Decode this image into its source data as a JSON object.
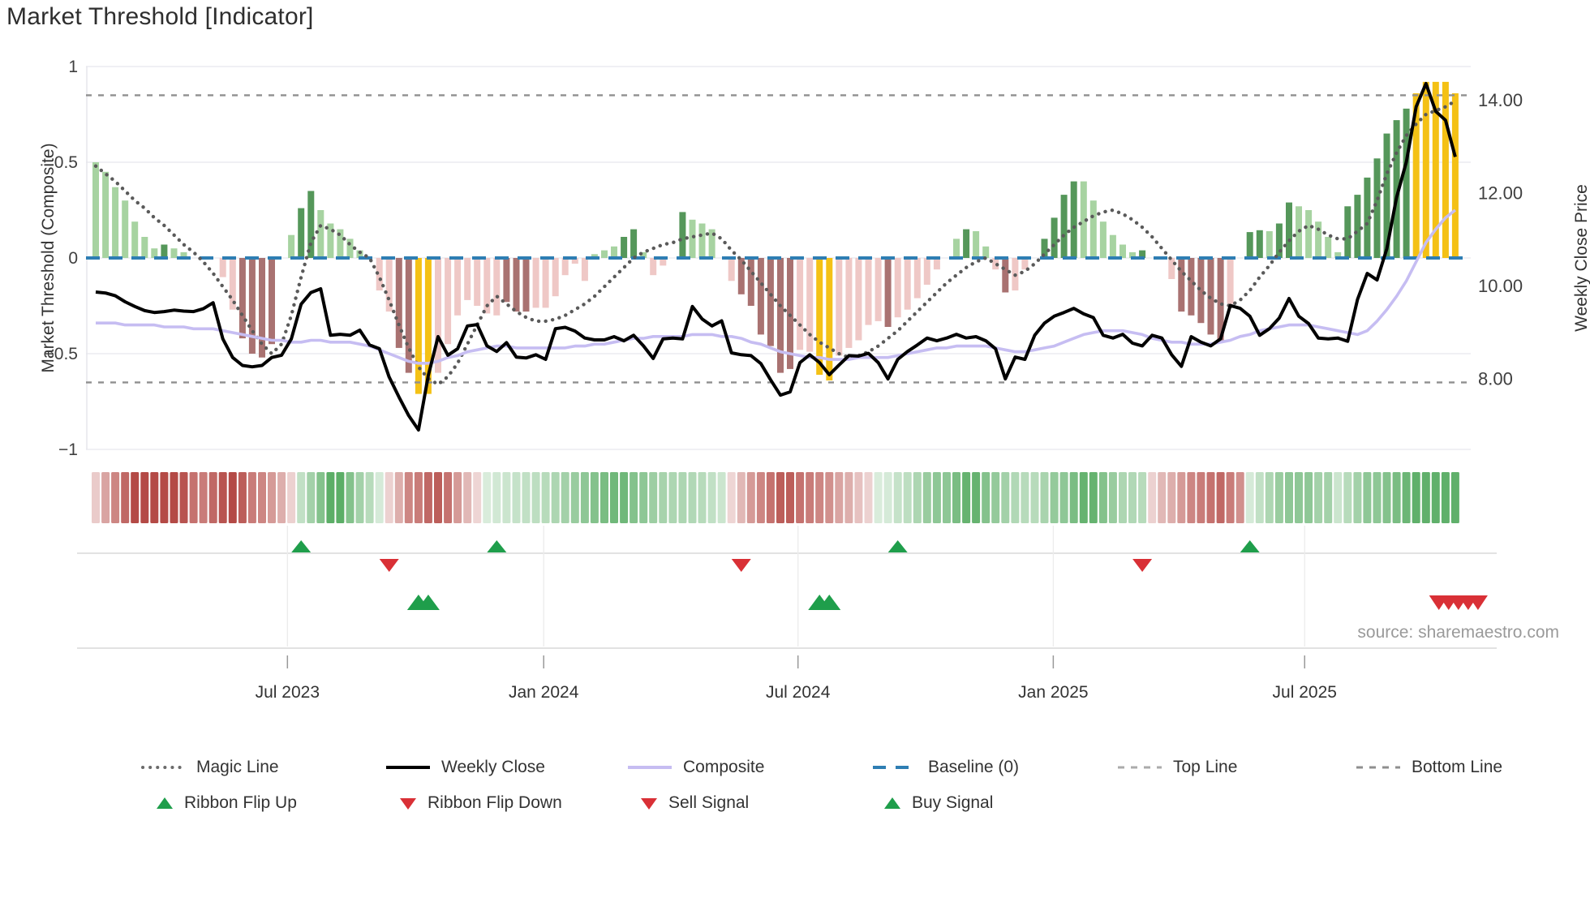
{
  "title": "Market Threshold [Indicator]",
  "source_note": "source: sharemaestro.com",
  "axes": {
    "left_title": "Market Threshold (Composite)",
    "right_title": "Weekly Close Price",
    "left_ticks": [
      {
        "label": "1",
        "value": 1
      },
      {
        "label": "0.5",
        "value": 0.5
      },
      {
        "label": "0",
        "value": 0
      },
      {
        "label": "−0.5",
        "value": -0.5
      },
      {
        "label": "−1",
        "value": -1
      }
    ],
    "right_ticks": [
      {
        "label": "14.00",
        "value": 14
      },
      {
        "label": "12.00",
        "value": 12
      },
      {
        "label": "10.00",
        "value": 10
      },
      {
        "label": "8.00",
        "value": 8
      }
    ],
    "x_ticks": [
      {
        "label": "Jul 2023",
        "week": 19.6
      },
      {
        "label": "Jan 2024",
        "week": 45.8
      },
      {
        "label": "Jul 2024",
        "week": 71.8
      },
      {
        "label": "Jan 2025",
        "week": 97.9
      },
      {
        "label": "Jul 2025",
        "week": 123.6
      }
    ]
  },
  "chart_data": {
    "type": "combo-bar-line-heatmap",
    "x_unit": "weekly",
    "n_weeks": 140,
    "left_axis_range": [
      -1,
      1
    ],
    "right_axis_range_price": [
      6.5,
      14.7
    ],
    "grid": "horizontal-only",
    "legend_position": "bottom",
    "thresholds": {
      "top_line": 0.85,
      "bottom_line": -0.65,
      "baseline": 0
    },
    "threshold_bars": {
      "name": "Market Threshold bars",
      "axis": "left",
      "values": [
        0.5,
        0.45,
        0.37,
        0.3,
        0.19,
        0.11,
        0.05,
        0.07,
        0.05,
        0.03,
        0,
        0,
        0,
        -0.1,
        -0.27,
        -0.42,
        -0.5,
        -0.52,
        -0.45,
        0,
        0.12,
        0.26,
        0.35,
        0.25,
        0.18,
        0.15,
        0.1,
        0.04,
        0,
        -0.17,
        -0.28,
        -0.47,
        -0.6,
        -0.71,
        -0.71,
        -0.6,
        -0.45,
        -0.3,
        -0.22,
        -0.25,
        -0.29,
        -0.3,
        -0.23,
        -0.28,
        -0.28,
        -0.26,
        -0.26,
        -0.2,
        -0.09,
        -0.03,
        -0.12,
        0.02,
        0.04,
        0.06,
        0.11,
        0.15,
        0.03,
        -0.09,
        -0.04,
        0,
        0.24,
        0.2,
        0.18,
        0.15,
        0,
        -0.12,
        -0.19,
        -0.25,
        -0.4,
        -0.46,
        -0.6,
        -0.58,
        -0.48,
        -0.49,
        -0.61,
        -0.64,
        -0.51,
        -0.47,
        -0.43,
        -0.35,
        -0.33,
        -0.36,
        -0.31,
        -0.27,
        -0.21,
        -0.14,
        -0.06,
        0,
        0.1,
        0.15,
        0.14,
        0.06,
        -0.06,
        -0.18,
        -0.17,
        -0.06,
        0,
        0.1,
        0.21,
        0.33,
        0.4,
        0.4,
        0.3,
        0.19,
        0.12,
        0.07,
        0.03,
        0.04,
        0,
        0,
        -0.11,
        -0.28,
        -0.3,
        -0.34,
        -0.4,
        -0.43,
        -0.24,
        0,
        0.135,
        0.145,
        0.14,
        0.18,
        0.29,
        0.27,
        0.25,
        0.19,
        0.11,
        0.03,
        0.27,
        0.33,
        0.42,
        0.52,
        0.65,
        0.72,
        0.78,
        0.86,
        0.92,
        0.92,
        0.92,
        0.86
      ],
      "color_codes": [
        "lg",
        "lg",
        "lg",
        "lg",
        "lg",
        "lg",
        "lg",
        "dg",
        "lg",
        "lg",
        null,
        null,
        null,
        "lr",
        "lr",
        "dr",
        "dr",
        "dr",
        "dr",
        null,
        "lg",
        "dg",
        "dg",
        "lg",
        "lg",
        "lg",
        "lg",
        "lg",
        null,
        "lr",
        "lr",
        "dr",
        "dr",
        "y",
        "y",
        "lr",
        "lr",
        "lr",
        "lr",
        "lr",
        "lr",
        "lr",
        "dr",
        "dr",
        "dr",
        "lr",
        "lr",
        "lr",
        "lr",
        "lr",
        "lr",
        "lg",
        "lg",
        "lg",
        "dg",
        "dg",
        "lg",
        "lr",
        "lr",
        null,
        "dg",
        "lg",
        "lg",
        "lg",
        null,
        "lr",
        "dr",
        "dr",
        "dr",
        "dr",
        "dr",
        "dr",
        "lr",
        "lr",
        "y",
        "y",
        "lr",
        "lr",
        "lr",
        "lr",
        "lr",
        "dr",
        "lr",
        "lr",
        "lr",
        "lr",
        "lr",
        null,
        "lg",
        "dg",
        "lg",
        "lg",
        "lr",
        "dr",
        "lr",
        "lr",
        null,
        "dg",
        "dg",
        "dg",
        "dg",
        "lg",
        "lg",
        "lg",
        "lg",
        "lg",
        "lg",
        "dg",
        null,
        null,
        "lr",
        "dr",
        "dr",
        "dr",
        "dr",
        "dr",
        "lr",
        null,
        "dg",
        "dg",
        "lg",
        "dg",
        "dg",
        "lg",
        "lg",
        "lg",
        "lg",
        "lg",
        "dg",
        "dg",
        "dg",
        "dg",
        "dg",
        "dg",
        "dg",
        "y",
        "y",
        "y",
        "y",
        "y"
      ]
    },
    "magic_line": {
      "name": "Magic Line",
      "axis": "left",
      "style": "dotted",
      "values": [
        0.48,
        0.44,
        0.4,
        0.35,
        0.3,
        0.26,
        0.21,
        0.17,
        0.12,
        0.07,
        0.03,
        -0.02,
        -0.08,
        -0.15,
        -0.22,
        -0.3,
        -0.38,
        -0.45,
        -0.5,
        -0.45,
        -0.3,
        -0.1,
        0.08,
        0.17,
        0.15,
        0.12,
        0.07,
        0.03,
        0.0,
        -0.1,
        -0.22,
        -0.35,
        -0.47,
        -0.57,
        -0.63,
        -0.66,
        -0.62,
        -0.55,
        -0.45,
        -0.35,
        -0.25,
        -0.2,
        -0.24,
        -0.28,
        -0.31,
        -0.33,
        -0.33,
        -0.32,
        -0.3,
        -0.27,
        -0.24,
        -0.2,
        -0.15,
        -0.1,
        -0.05,
        0.0,
        0.03,
        0.05,
        0.07,
        0.08,
        0.1,
        0.11,
        0.12,
        0.13,
        0.1,
        0.04,
        -0.01,
        -0.07,
        -0.13,
        -0.19,
        -0.25,
        -0.3,
        -0.35,
        -0.4,
        -0.44,
        -0.47,
        -0.5,
        -0.52,
        -0.51,
        -0.49,
        -0.46,
        -0.42,
        -0.38,
        -0.33,
        -0.28,
        -0.23,
        -0.18,
        -0.13,
        -0.09,
        -0.05,
        -0.02,
        0.0,
        -0.03,
        -0.06,
        -0.09,
        -0.07,
        -0.03,
        0.02,
        0.07,
        0.12,
        0.16,
        0.19,
        0.22,
        0.24,
        0.25,
        0.23,
        0.2,
        0.16,
        0.11,
        0.05,
        -0.01,
        -0.07,
        -0.12,
        -0.17,
        -0.21,
        -0.24,
        -0.25,
        -0.22,
        -0.17,
        -0.1,
        -0.04,
        0.03,
        0.09,
        0.14,
        0.17,
        0.15,
        0.12,
        0.1,
        0.1,
        0.14,
        0.18,
        0.3,
        0.44,
        0.55,
        0.64,
        0.7,
        0.75,
        0.77,
        0.79,
        0.82
      ]
    },
    "weekly_close": {
      "name": "Weekly Close",
      "axis": "right-price",
      "values": [
        9.86,
        9.84,
        9.78,
        9.65,
        9.55,
        9.46,
        9.42,
        9.44,
        9.47,
        9.45,
        9.44,
        9.5,
        9.63,
        8.85,
        8.45,
        8.28,
        8.25,
        8.28,
        8.45,
        8.5,
        8.85,
        9.6,
        9.85,
        9.93,
        8.93,
        8.95,
        8.93,
        9.04,
        8.72,
        8.64,
        8.03,
        7.6,
        7.2,
        6.89,
        8.06,
        8.9,
        8.5,
        8.64,
        9.13,
        9.16,
        8.7,
        8.58,
        8.77,
        8.46,
        8.44,
        8.51,
        8.41,
        9.07,
        9.1,
        9.02,
        8.87,
        8.83,
        8.83,
        8.9,
        8.81,
        8.93,
        8.7,
        8.43,
        8.85,
        8.87,
        8.85,
        9.55,
        9.28,
        9.13,
        9.24,
        8.55,
        8.51,
        8.49,
        8.32,
        7.97,
        7.64,
        7.71,
        8.34,
        8.51,
        8.34,
        8.08,
        8.29,
        8.49,
        8.48,
        8.54,
        8.34,
        7.99,
        8.41,
        8.58,
        8.72,
        8.87,
        8.81,
        8.87,
        8.95,
        8.87,
        8.9,
        8.81,
        8.64,
        7.99,
        8.46,
        8.41,
        8.93,
        9.19,
        9.34,
        9.42,
        9.51,
        9.39,
        9.31,
        8.93,
        8.87,
        8.95,
        8.76,
        8.7,
        8.93,
        8.87,
        8.51,
        8.26,
        8.9,
        8.78,
        8.7,
        8.85,
        9.57,
        9.51,
        9.34,
        8.93,
        9.07,
        9.3,
        9.72,
        9.34,
        9.18,
        8.87,
        8.85,
        8.87,
        8.8,
        9.7,
        10.26,
        10.12,
        10.79,
        11.9,
        12.66,
        13.85,
        14.35,
        13.75,
        13.56,
        12.77
      ]
    },
    "composite_line": {
      "name": "Composite",
      "axis": "left",
      "values": [
        -0.34,
        -0.34,
        -0.34,
        -0.35,
        -0.35,
        -0.35,
        -0.35,
        -0.36,
        -0.36,
        -0.36,
        -0.37,
        -0.37,
        -0.37,
        -0.38,
        -0.39,
        -0.4,
        -0.41,
        -0.42,
        -0.43,
        -0.43,
        -0.44,
        -0.44,
        -0.43,
        -0.43,
        -0.44,
        -0.44,
        -0.44,
        -0.45,
        -0.46,
        -0.48,
        -0.5,
        -0.52,
        -0.54,
        -0.55,
        -0.55,
        -0.54,
        -0.52,
        -0.51,
        -0.49,
        -0.48,
        -0.47,
        -0.46,
        -0.46,
        -0.47,
        -0.47,
        -0.47,
        -0.47,
        -0.47,
        -0.47,
        -0.46,
        -0.46,
        -0.45,
        -0.45,
        -0.44,
        -0.43,
        -0.42,
        -0.42,
        -0.41,
        -0.41,
        -0.41,
        -0.41,
        -0.4,
        -0.4,
        -0.4,
        -0.41,
        -0.41,
        -0.42,
        -0.44,
        -0.45,
        -0.47,
        -0.49,
        -0.5,
        -0.51,
        -0.52,
        -0.52,
        -0.53,
        -0.53,
        -0.53,
        -0.52,
        -0.52,
        -0.52,
        -0.52,
        -0.51,
        -0.5,
        -0.49,
        -0.48,
        -0.47,
        -0.47,
        -0.46,
        -0.46,
        -0.46,
        -0.46,
        -0.47,
        -0.48,
        -0.49,
        -0.49,
        -0.48,
        -0.47,
        -0.46,
        -0.44,
        -0.42,
        -0.4,
        -0.39,
        -0.38,
        -0.38,
        -0.38,
        -0.39,
        -0.4,
        -0.42,
        -0.43,
        -0.44,
        -0.44,
        -0.45,
        -0.45,
        -0.45,
        -0.44,
        -0.43,
        -0.41,
        -0.4,
        -0.38,
        -0.37,
        -0.36,
        -0.35,
        -0.35,
        -0.35,
        -0.36,
        -0.37,
        -0.38,
        -0.39,
        -0.4,
        -0.38,
        -0.33,
        -0.27,
        -0.2,
        -0.12,
        -0.02,
        0.08,
        0.15,
        0.21,
        0.25
      ]
    },
    "ribbon": {
      "name": "Trend ribbon heatmap",
      "values": [
        -0.15,
        -0.35,
        -0.5,
        -0.65,
        -0.8,
        -0.8,
        -0.8,
        -0.8,
        -0.8,
        -0.75,
        -0.6,
        -0.55,
        -0.65,
        -0.75,
        -0.8,
        -0.7,
        -0.55,
        -0.5,
        -0.4,
        -0.3,
        -0.12,
        0.2,
        0.35,
        0.5,
        0.7,
        0.7,
        0.5,
        0.35,
        0.25,
        0.1,
        -0.12,
        -0.3,
        -0.5,
        -0.55,
        -0.65,
        -0.7,
        -0.6,
        -0.4,
        -0.25,
        -0.1,
        0.08,
        0.12,
        0.15,
        0.18,
        0.2,
        0.22,
        0.25,
        0.3,
        0.35,
        0.4,
        0.45,
        0.5,
        0.55,
        0.6,
        0.6,
        0.5,
        0.45,
        0.38,
        0.33,
        0.3,
        0.3,
        0.28,
        0.25,
        0.2,
        0.15,
        -0.1,
        -0.25,
        -0.4,
        -0.5,
        -0.6,
        -0.7,
        -0.7,
        -0.6,
        -0.55,
        -0.5,
        -0.45,
        -0.35,
        -0.3,
        -0.2,
        -0.12,
        0.08,
        0.1,
        0.18,
        0.22,
        0.3,
        0.4,
        0.45,
        0.45,
        0.55,
        0.65,
        0.65,
        0.5,
        0.42,
        0.35,
        0.28,
        0.25,
        0.25,
        0.32,
        0.42,
        0.45,
        0.55,
        0.65,
        0.65,
        0.5,
        0.4,
        0.3,
        0.28,
        0.25,
        -0.12,
        -0.25,
        -0.3,
        -0.4,
        -0.5,
        -0.55,
        -0.6,
        -0.65,
        -0.55,
        -0.45,
        0.1,
        0.2,
        0.3,
        0.4,
        0.45,
        0.45,
        0.45,
        0.35,
        0.35,
        0.15,
        0.25,
        0.35,
        0.45,
        0.45,
        0.5,
        0.55,
        0.62,
        0.68,
        0.68,
        0.68,
        0.68,
        0.68
      ]
    },
    "signals": {
      "ribbon_flip_up_weeks": [
        21,
        41,
        82,
        118
      ],
      "ribbon_flip_down_weeks": [
        30,
        66,
        107
      ],
      "buy_signal_weeks": [
        33,
        34,
        74,
        75
      ],
      "sell_signal_weeks": [
        135,
        136,
        137,
        138,
        139
      ]
    }
  },
  "legend": {
    "row1": [
      {
        "label": "Magic Line",
        "marker": "dotted-gray-line"
      },
      {
        "label": "Weekly Close",
        "marker": "solid-black-line"
      },
      {
        "label": "Composite",
        "marker": "solid-lavender-line"
      },
      {
        "label": "Baseline (0)",
        "marker": "dashed-blue-line"
      },
      {
        "label": "Top Line",
        "marker": "dashed-lightgray-line"
      },
      {
        "label": "Bottom Line",
        "marker": "dashed-gray-line"
      }
    ],
    "row2": [
      {
        "label": "Ribbon Flip Up",
        "marker": "green-up-triangle"
      },
      {
        "label": "Ribbon Flip Down",
        "marker": "red-down-triangle"
      },
      {
        "label": "Sell Signal",
        "marker": "red-down-triangle"
      },
      {
        "label": "Buy Signal",
        "marker": "green-up-triangle"
      }
    ]
  },
  "colors": {
    "bar_light_green": "#A7D3A1",
    "bar_dark_green": "#55975A",
    "bar_light_red": "#EFC8C6",
    "bar_dark_red": "#A97271",
    "bar_yellow": "#F4C115",
    "magic_line": "#5A5A5A",
    "weekly_close": "#000000",
    "composite": "#C6BDF2",
    "baseline": "#2E7EB3",
    "threshold_dash": "#8F8F8F",
    "ribbon_red": "#B44A46",
    "ribbon_green": "#48A454",
    "signal_green": "#1F9E4B",
    "signal_red": "#D93036",
    "gridline": "#ECECF1"
  }
}
